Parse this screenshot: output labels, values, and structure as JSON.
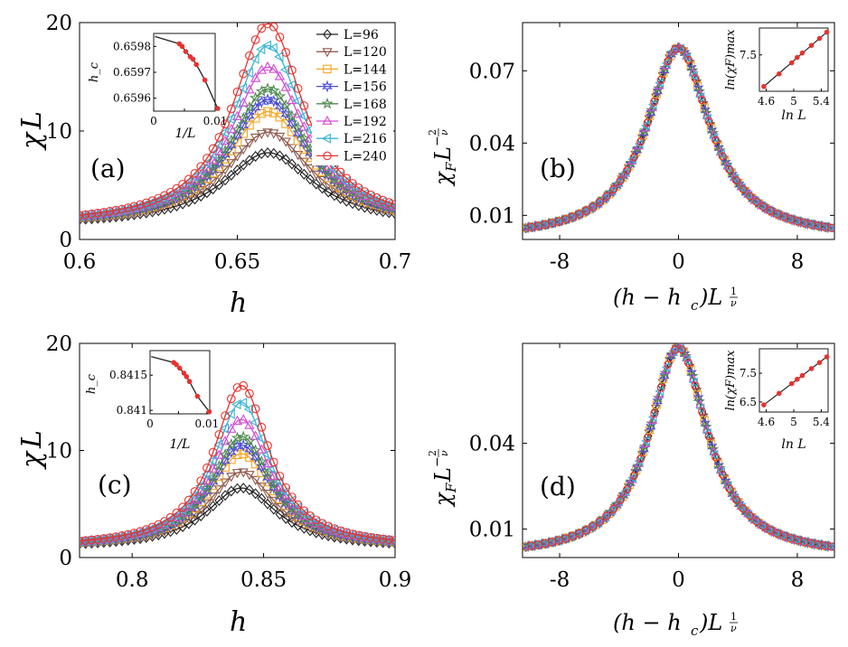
{
  "figure": {
    "panels": [
      {
        "id": "a",
        "label": "(a)"
      },
      {
        "id": "b",
        "label": "(b)"
      },
      {
        "id": "c",
        "label": "(c)"
      },
      {
        "id": "d",
        "label": "(d)"
      }
    ],
    "left_ylabel": {
      "main": "χ",
      "sub": "L"
    },
    "left_xlabel": "h",
    "right_ylabel": {
      "main": "χ",
      "sub": "F",
      "mid": "L",
      "sup": "−",
      "frac_num": "2",
      "frac_den": "ν"
    },
    "right_xlabel": {
      "text": "(h − h",
      "sub": "c",
      "close": ")L",
      "frac_num": "1",
      "frac_den": "ν"
    }
  },
  "legend": {
    "entries": [
      {
        "label": "L=96",
        "color": "#222222",
        "marker": "diamond"
      },
      {
        "label": "L=120",
        "color": "#8c5a4e",
        "marker": "triangle-down"
      },
      {
        "label": "L=144",
        "color": "#f5a623",
        "marker": "square"
      },
      {
        "label": "L=156",
        "color": "#4b4bd6",
        "marker": "star6"
      },
      {
        "label": "L=168",
        "color": "#4e8a4e",
        "marker": "star5"
      },
      {
        "label": "L=192",
        "color": "#d24bd2",
        "marker": "triangle-up"
      },
      {
        "label": "L=216",
        "color": "#35b4d8",
        "marker": "triangle-left"
      },
      {
        "label": "L=240",
        "color": "#e8322e",
        "marker": "circle"
      }
    ]
  },
  "chart_data": [
    {
      "panel": "a",
      "type": "line",
      "xlim": [
        0.6,
        0.7
      ],
      "ylim": [
        0,
        20
      ],
      "xticks": [
        0.6,
        0.65,
        0.7
      ],
      "xtick_labels": [
        "0.6",
        "0.65",
        "0.7"
      ],
      "yticks": [
        0,
        10,
        20
      ],
      "ytick_labels": [
        "0",
        "10",
        "20"
      ],
      "xlabel": "h",
      "ylabel": "χL",
      "peak_x": 0.6598,
      "base": 1.3,
      "width": 0.0175,
      "series": [
        {
          "name": "L=96",
          "peak": 8.0
        },
        {
          "name": "L=120",
          "peak": 9.9
        },
        {
          "name": "L=144",
          "peak": 11.8
        },
        {
          "name": "L=156",
          "peak": 12.9
        },
        {
          "name": "L=168",
          "peak": 13.9
        },
        {
          "name": "L=192",
          "peak": 15.9
        },
        {
          "name": "L=216",
          "peak": 17.9
        },
        {
          "name": "L=240",
          "peak": 19.9
        }
      ],
      "inset": {
        "xlim": [
          0,
          0.01
        ],
        "ylim": [
          0.65955,
          0.65985
        ],
        "xticks": [
          0,
          0.005,
          0.01
        ],
        "xtick_labels": [
          "0",
          "",
          "0.01"
        ],
        "yticks": [
          0.6596,
          0.6597,
          0.6598
        ],
        "ytick_labels": [
          "0.6596",
          "0.6597",
          "0.6598"
        ],
        "xlabel": "1/L",
        "ylabel": "h_c",
        "x": [
          0.00417,
          0.00463,
          0.00521,
          0.00595,
          0.00641,
          0.00694,
          0.00833,
          0.01042
        ],
        "y": [
          0.65981,
          0.6598,
          0.65978,
          0.65976,
          0.65975,
          0.65973,
          0.65967,
          0.65956
        ]
      }
    },
    {
      "panel": "b",
      "type": "line",
      "xlim": [
        -10.5,
        10.5
      ],
      "ylim": [
        0.0,
        0.09
      ],
      "xticks": [
        -8,
        0,
        8
      ],
      "xtick_labels": [
        "-8",
        "0",
        "8"
      ],
      "yticks": [
        0.01,
        0.04,
        0.07
      ],
      "ytick_labels": [
        "0.01",
        "0.04",
        "0.07"
      ],
      "peak": 0.0795,
      "base": 0.0,
      "width": 2.6,
      "inset": {
        "xlim": [
          4.5,
          5.5
        ],
        "ylim": [
          6.35,
          8.35
        ],
        "xticks": [
          4.6,
          5,
          5.4
        ],
        "xtick_labels": [
          "4.6",
          "5",
          "5.4"
        ],
        "yticks": [
          7.5
        ],
        "ytick_labels": [
          "7.5"
        ],
        "xlabel": "ln L",
        "ylabel": "ln(χF)max",
        "x": [
          4.564,
          4.787,
          4.97,
          5.05,
          5.124,
          5.257,
          5.375,
          5.481
        ],
        "y": [
          6.5,
          6.9,
          7.25,
          7.42,
          7.56,
          7.8,
          8.02,
          8.22
        ]
      }
    },
    {
      "panel": "c",
      "type": "line",
      "xlim": [
        0.78,
        0.9
      ],
      "ylim": [
        0,
        20
      ],
      "xticks": [
        0.8,
        0.85,
        0.9
      ],
      "xtick_labels": [
        "0.8",
        "0.85",
        "0.9"
      ],
      "yticks": [
        0,
        10,
        20
      ],
      "ytick_labels": [
        "0",
        "10",
        "20"
      ],
      "xlabel": "h",
      "ylabel": "χL",
      "peak_x": 0.8416,
      "base": 0.9,
      "width": 0.0165,
      "series": [
        {
          "name": "L=96",
          "peak": 6.5
        },
        {
          "name": "L=120",
          "peak": 8.0
        },
        {
          "name": "L=144",
          "peak": 9.7
        },
        {
          "name": "L=156",
          "peak": 10.5
        },
        {
          "name": "L=168",
          "peak": 11.3
        },
        {
          "name": "L=192",
          "peak": 12.9
        },
        {
          "name": "L=216",
          "peak": 14.5
        },
        {
          "name": "L=240",
          "peak": 16.1
        }
      ],
      "inset": {
        "xlim": [
          0,
          0.0105
        ],
        "ylim": [
          0.84095,
          0.84185
        ],
        "xticks": [
          0,
          0.005,
          0.01
        ],
        "xtick_labels": [
          "0",
          "",
          "0.01"
        ],
        "yticks": [
          0.841,
          0.8415
        ],
        "ytick_labels": [
          "0.841",
          "0.8415"
        ],
        "xlabel": "1/L",
        "ylabel": "h_c",
        "x": [
          0.00417,
          0.00463,
          0.00521,
          0.00595,
          0.00641,
          0.00694,
          0.00833,
          0.01042
        ],
        "y": [
          0.84168,
          0.84165,
          0.8416,
          0.84153,
          0.84148,
          0.84141,
          0.8412,
          0.84098
        ]
      }
    },
    {
      "panel": "d",
      "type": "line",
      "xlim": [
        -10.5,
        10.5
      ],
      "ylim": [
        0.0,
        0.075
      ],
      "xticks": [
        -8,
        0,
        8
      ],
      "xtick_labels": [
        "-8",
        "0",
        "8"
      ],
      "yticks": [
        0.01,
        0.04
      ],
      "ytick_labels": [
        "0.01",
        "0.04"
      ],
      "peak": 0.0735,
      "base": 0.0,
      "width": 2.4,
      "inset": {
        "xlim": [
          4.5,
          5.5
        ],
        "ylim": [
          6.15,
          8.35
        ],
        "xticks": [
          4.6,
          5,
          5.4
        ],
        "xtick_labels": [
          "4.6",
          "5",
          "5.4"
        ],
        "yticks": [
          6.5,
          7.5
        ],
        "ytick_labels": [
          "6.5",
          "7.5"
        ],
        "xlabel": "ln L",
        "ylabel": "ln(χF)max",
        "x": [
          4.564,
          4.787,
          4.97,
          5.05,
          5.124,
          5.257,
          5.375,
          5.481
        ],
        "y": [
          6.4,
          6.8,
          7.14,
          7.29,
          7.42,
          7.66,
          7.87,
          8.07
        ]
      }
    }
  ]
}
